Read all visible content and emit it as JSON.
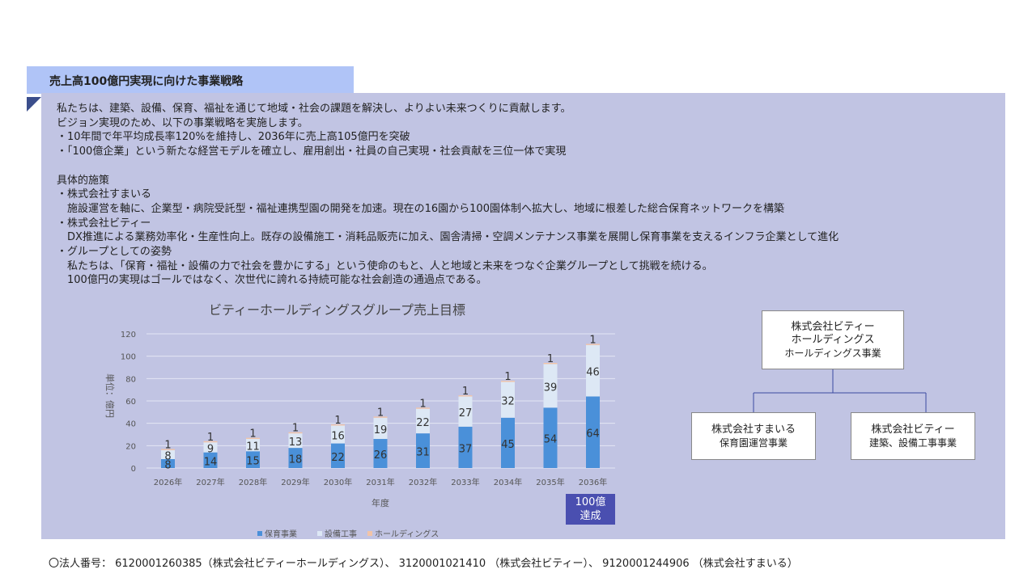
{
  "header": {
    "title": "売上高100億円実現に向けた事業戦略"
  },
  "body_lines": [
    "私たちは、建築、設備、保育、福祉を通じて地域・社会の課題を解決し、よりよい未来つくりに貢献します。",
    "ビジョン実現のため、以下の事業戦略を実施します。",
    "・10年間で年平均成長率120%を維持し、2036年に売上高105億円を突破",
    "・「100億企業」という新たな経営モデルを確立し、雇用創出・社員の自己実現・社会貢献を三位一体で実現",
    "",
    "具体的施策",
    "・株式会社すまいる",
    "　施設運営を軸に、企業型・病院受託型・福祉連携型園の開発を加速。現在の16園から100園体制へ拡大し、地域に根差した総合保育ネットワークを構築",
    "・株式会社ビティー",
    "　DX推進による業務効率化・生産性向上。既存の設備施工・消耗品販売に加え、園舎清掃・空調メンテナンス事業を展開し保育事業を支えるインフラ企業として進化",
    "・グループとしての姿勢",
    "　私たちは、「保育・福祉・設備の力で社会を豊かにする」という使命のもと、人と地域と未来をつなぐ企業グループとして挑戦を続ける。",
    "　100億円の実現はゴールではなく、次世代に誇れる持続可能な社会創造の通過点である。"
  ],
  "chart_data": {
    "type": "bar",
    "stacked": true,
    "title": "ビティーホールディングスグループ売上目標",
    "xlabel": "年度",
    "ylabel": "単位：億円",
    "ylim": [
      0,
      120
    ],
    "yticks": [
      0,
      20,
      40,
      60,
      80,
      100,
      120
    ],
    "grid": true,
    "legend": "bottom",
    "categories": [
      "2026年",
      "2027年",
      "2028年",
      "2029年",
      "2030年",
      "2031年",
      "2032年",
      "2033年",
      "2034年",
      "2035年",
      "2036年"
    ],
    "series": [
      {
        "name": "保育事業",
        "color": "#4a90d9",
        "values": [
          8,
          14,
          15,
          18,
          22,
          26,
          31,
          37,
          45,
          54,
          64
        ]
      },
      {
        "name": "設備工事",
        "color": "#dde8f5",
        "values": [
          8,
          9,
          11,
          13,
          16,
          19,
          22,
          27,
          32,
          39,
          46
        ]
      },
      {
        "name": "ホールディングス",
        "color": "#f2c4a8",
        "values": [
          1,
          1,
          1,
          1,
          1,
          1,
          1,
          1,
          1,
          1,
          1
        ]
      }
    ],
    "annotation": "100億\n達成"
  },
  "org": {
    "top": {
      "name": "株式会社ビティー\nホールディングス",
      "sub": "ホールディングス事業"
    },
    "left": {
      "name": "株式会社すまいる",
      "sub": "保育園運営事業"
    },
    "right": {
      "name": "株式会社ビティー",
      "sub": "建築、設備工事事業"
    }
  },
  "footer": "〇法人番号： 6120001260385（株式会社ビティーホールディングス）、 3120001021410 （株式会社ビティー）、 9120001244906 （株式会社すまいる）"
}
